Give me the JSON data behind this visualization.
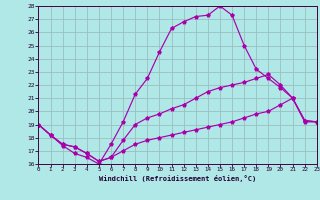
{
  "bg_color": "#b0e8e8",
  "grid_color": "#9bbfbf",
  "line_color": "#aa00aa",
  "xlim": [
    0,
    23
  ],
  "ylim": [
    16,
    28
  ],
  "xticks": [
    0,
    1,
    2,
    3,
    4,
    5,
    6,
    7,
    8,
    9,
    10,
    11,
    12,
    13,
    14,
    15,
    16,
    17,
    18,
    19,
    20,
    21,
    22,
    23
  ],
  "yticks": [
    16,
    17,
    18,
    19,
    20,
    21,
    22,
    23,
    24,
    25,
    26,
    27,
    28
  ],
  "xlabel": "Windchill (Refroidissement éolien,°C)",
  "line_top_x": [
    0,
    1,
    2,
    3,
    4,
    5,
    6,
    7,
    8,
    9,
    10,
    11,
    12,
    13,
    14,
    15,
    16,
    17,
    18,
    19,
    20,
    21,
    22,
    23
  ],
  "line_top_y": [
    19.0,
    18.2,
    17.4,
    16.8,
    16.5,
    16.0,
    17.5,
    19.2,
    21.3,
    22.5,
    24.5,
    26.3,
    26.8,
    27.2,
    27.3,
    28.0,
    27.3,
    25.0,
    23.2,
    22.5,
    21.8,
    21.0,
    19.2,
    19.2
  ],
  "line_mid_x": [
    0,
    1,
    2,
    3,
    4,
    5,
    6,
    7,
    8,
    9,
    10,
    11,
    12,
    13,
    14,
    15,
    16,
    17,
    18,
    19,
    20,
    21,
    22,
    23
  ],
  "line_mid_y": [
    19.0,
    18.2,
    17.5,
    17.3,
    16.8,
    16.2,
    16.5,
    17.8,
    19.0,
    19.5,
    19.8,
    20.2,
    20.5,
    21.0,
    21.5,
    21.8,
    22.0,
    22.2,
    22.5,
    22.8,
    22.0,
    21.0,
    19.3,
    19.2
  ],
  "line_bot_x": [
    0,
    1,
    2,
    3,
    4,
    5,
    6,
    7,
    8,
    9,
    10,
    11,
    12,
    13,
    14,
    15,
    16,
    17,
    18,
    19,
    20,
    21,
    22,
    23
  ],
  "line_bot_y": [
    19.0,
    18.2,
    17.5,
    17.3,
    16.8,
    16.2,
    16.5,
    17.0,
    17.5,
    17.8,
    18.0,
    18.2,
    18.4,
    18.6,
    18.8,
    19.0,
    19.2,
    19.5,
    19.8,
    20.0,
    20.5,
    21.0,
    19.3,
    19.2
  ]
}
